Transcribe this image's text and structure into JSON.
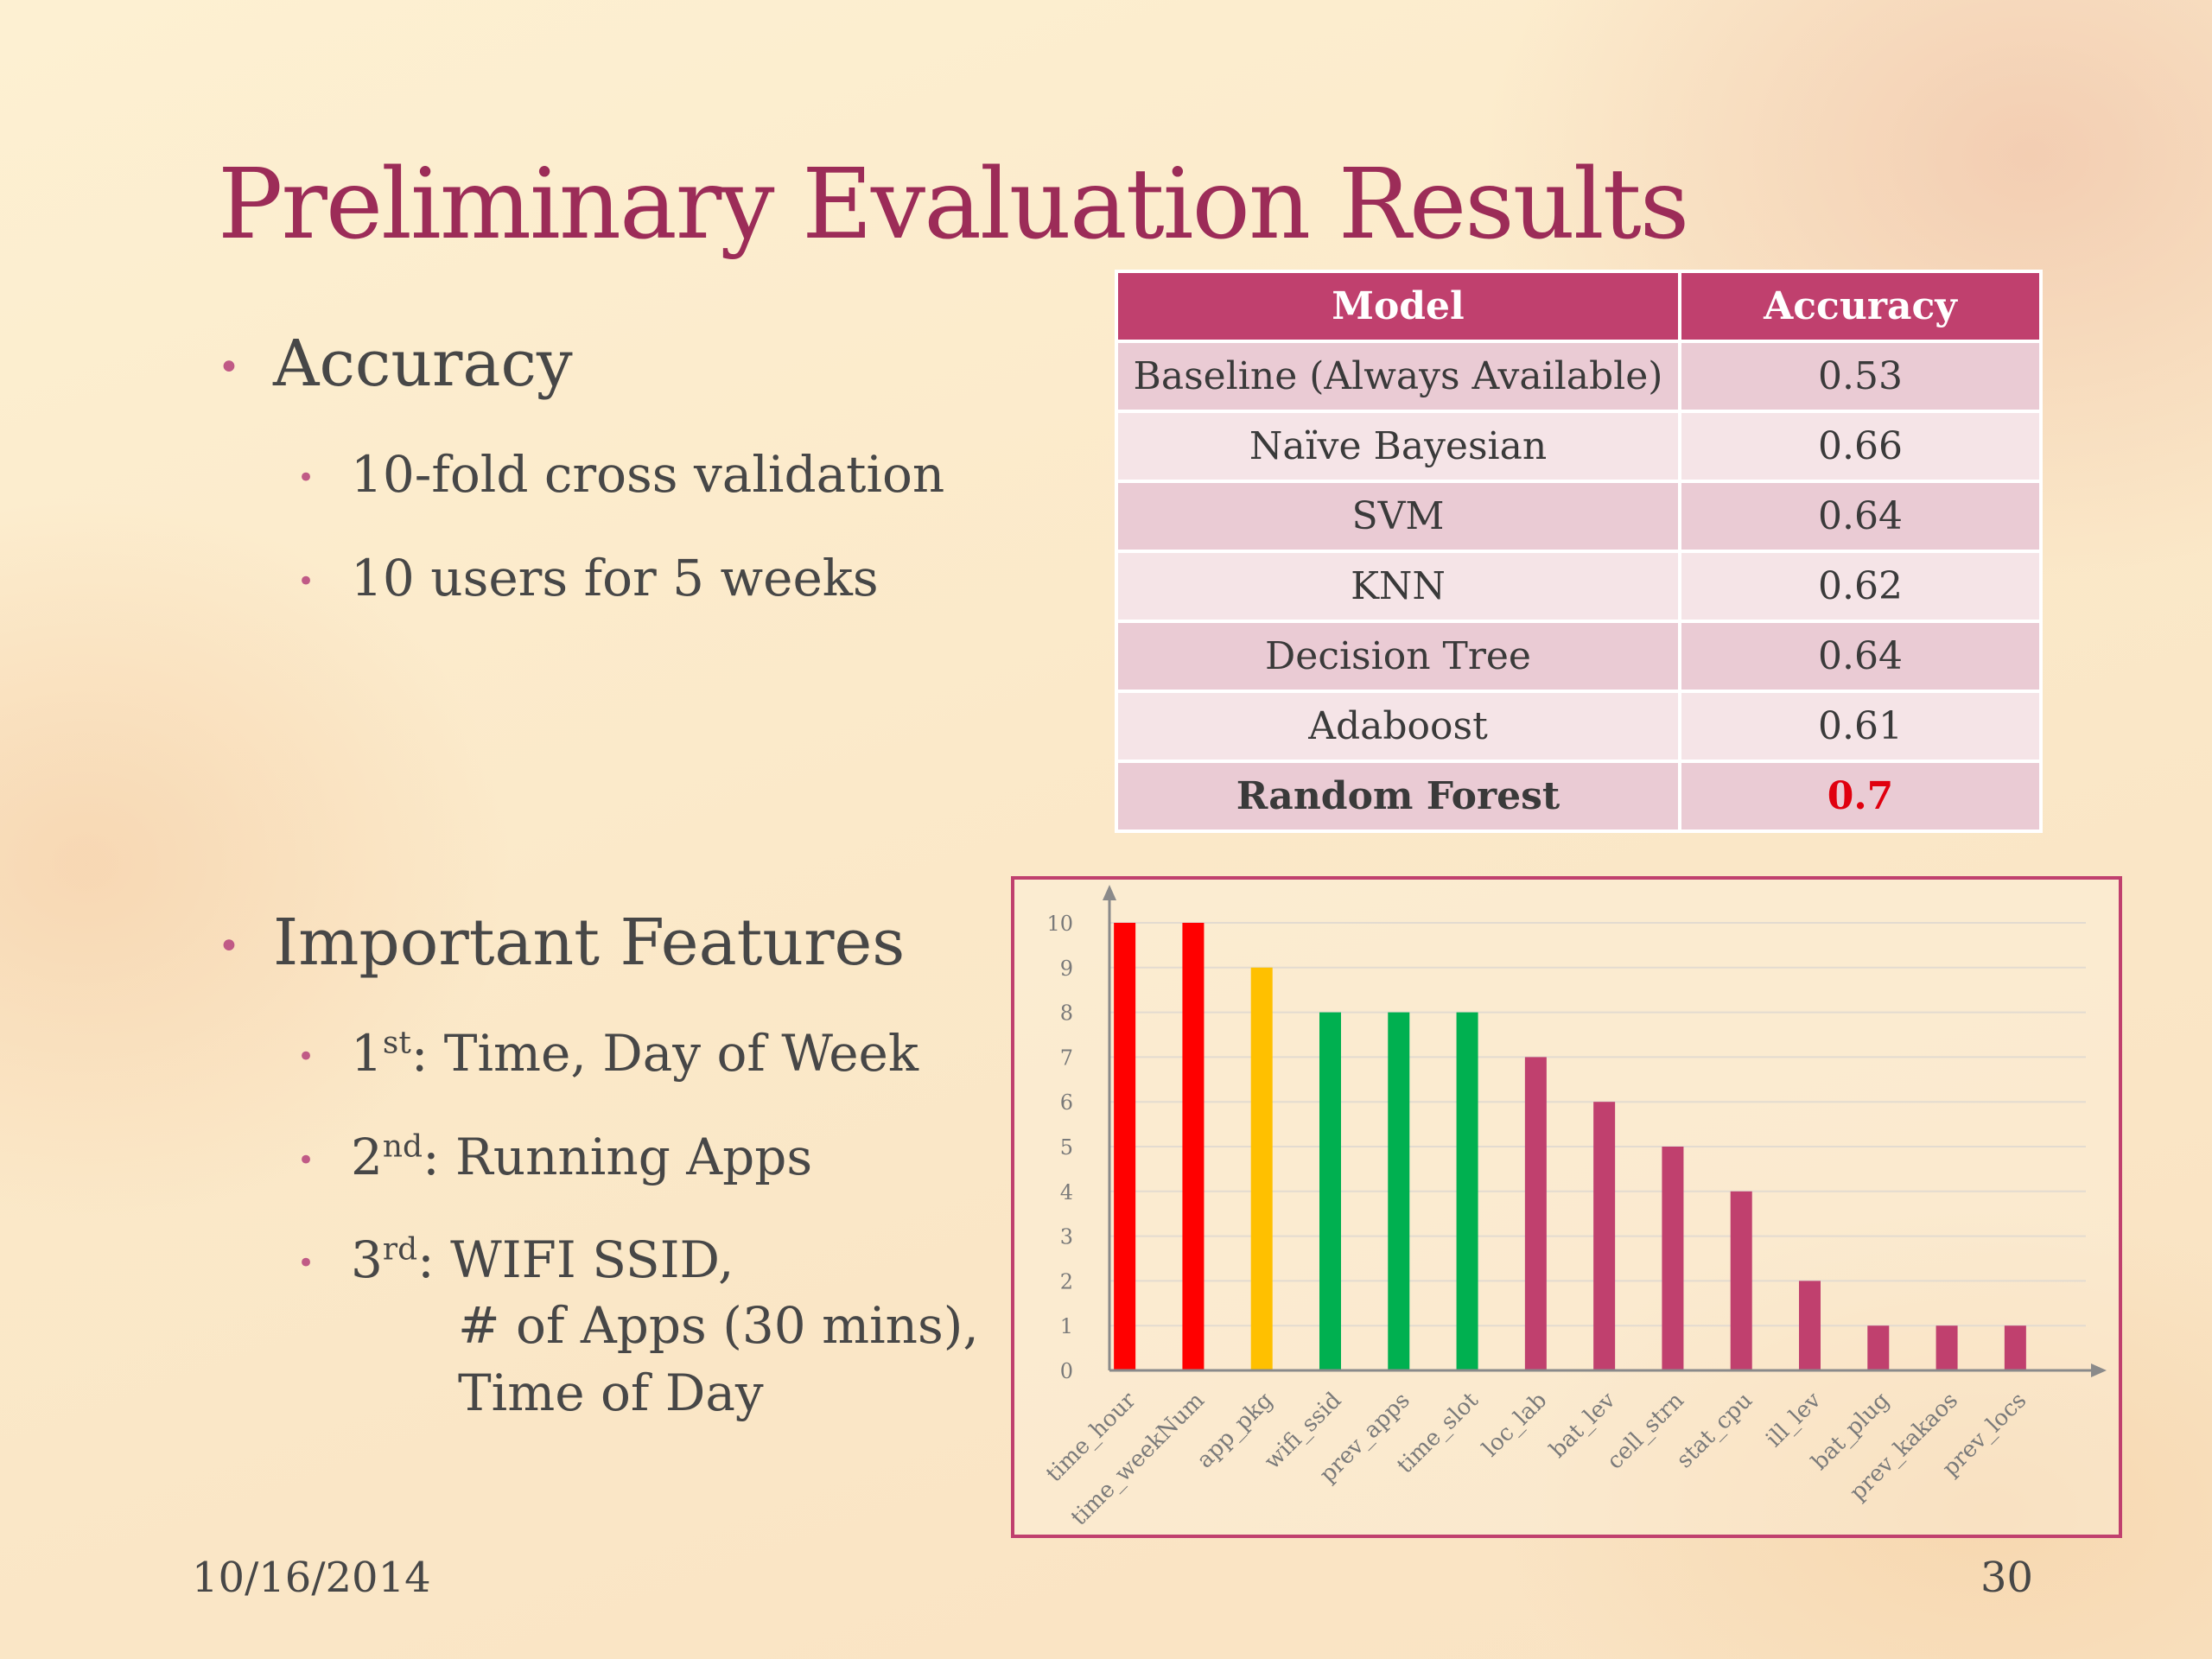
{
  "slide": {
    "title": "Preliminary Evaluation Results",
    "date": "10/16/2014",
    "page_number": "30"
  },
  "bullets": {
    "accuracy": {
      "label": "Accuracy",
      "sub": [
        "10-fold cross validation",
        "10 users for 5 weeks"
      ]
    },
    "features": {
      "label": "Important Features",
      "first": {
        "ordinal": "1",
        "suffix": "st",
        "text": ": Time, Day of Week"
      },
      "second": {
        "ordinal": "2",
        "suffix": "nd",
        "text": ": Running Apps"
      },
      "third": {
        "ordinal": "3",
        "suffix": "rd",
        "text": ": WIFI SSID,",
        "line2": "# of Apps (30 mins),",
        "line3": "Time of Day"
      }
    }
  },
  "table": {
    "headers": [
      "Model",
      "Accuracy"
    ],
    "rows": [
      {
        "model": "Baseline (Always Available)",
        "accuracy": "0.53"
      },
      {
        "model": "Naïve Bayesian",
        "accuracy": "0.66"
      },
      {
        "model": "SVM",
        "accuracy": "0.64"
      },
      {
        "model": "KNN",
        "accuracy": "0.62"
      },
      {
        "model": "Decision Tree",
        "accuracy": "0.64"
      },
      {
        "model": "Adaboost",
        "accuracy": "0.61"
      },
      {
        "model": "Random Forest",
        "accuracy": "0.7"
      }
    ],
    "colors": {
      "header": "#c0406e",
      "highlight": "#e0000f"
    }
  },
  "chart_data": {
    "type": "bar",
    "title": "",
    "xlabel": "",
    "ylabel": "",
    "ylim": [
      0,
      10
    ],
    "yticks": [
      0,
      1,
      2,
      3,
      4,
      5,
      6,
      7,
      8,
      9,
      10
    ],
    "grid": true,
    "categories": [
      "time_hour",
      "time_weekNum",
      "app_pkg",
      "wifi_ssid",
      "prev_apps",
      "time_slot",
      "loc_lab",
      "bat_lev",
      "cell_strn",
      "stat_cpu",
      "ill_lev",
      "bat_plug",
      "prev_kakaos",
      "prev_locs"
    ],
    "values": [
      10,
      10,
      9,
      8,
      8,
      8,
      7,
      6,
      5,
      4,
      2,
      1,
      1,
      1
    ],
    "bar_colors": [
      "#ff0000",
      "#ff0000",
      "#ffc000",
      "#00b050",
      "#00b050",
      "#00b050",
      "#c0406e",
      "#c0406e",
      "#c0406e",
      "#c0406e",
      "#c0406e",
      "#c0406e",
      "#c0406e",
      "#c0406e"
    ]
  }
}
